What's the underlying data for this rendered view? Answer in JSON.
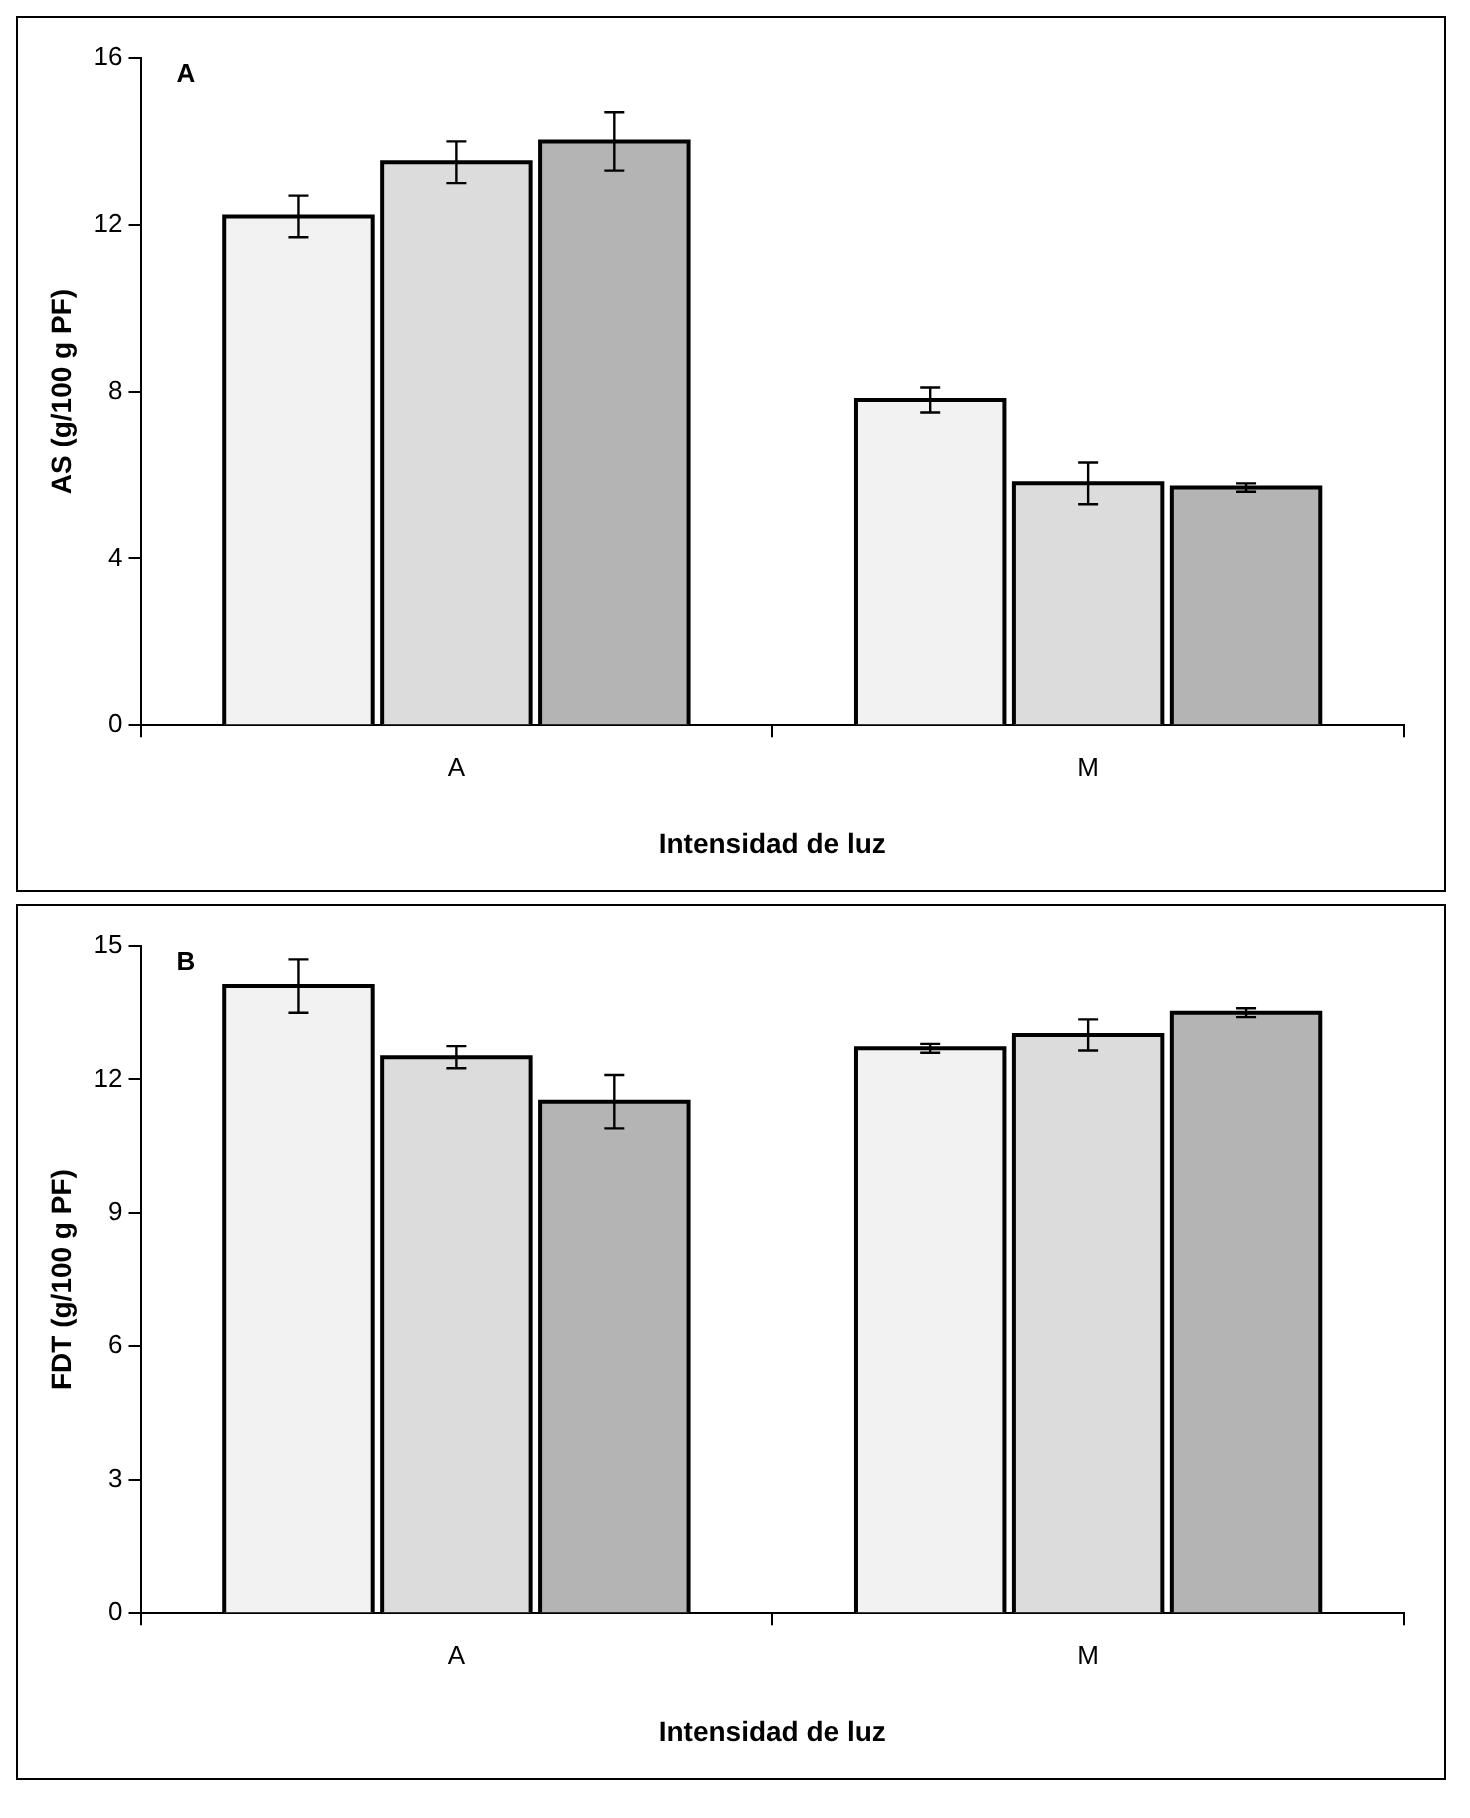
{
  "chart_data": [
    {
      "type": "bar",
      "categories": [
        "A",
        "M"
      ],
      "xlabel": "Intensidad de luz",
      "ylabel": "AS (g/100 g PF)",
      "ylim": [
        0,
        16
      ],
      "yticks": [
        0,
        4,
        8,
        12,
        16
      ],
      "grid": false,
      "legend": false,
      "annotations": [
        "A"
      ],
      "series": [
        {
          "color": "#f2f2f2",
          "values": [
            12.2,
            7.8
          ],
          "errors": [
            0.5,
            0.3
          ]
        },
        {
          "color": "#dcdcdc",
          "values": [
            13.5,
            5.8
          ],
          "errors": [
            0.5,
            0.5
          ]
        },
        {
          "color": "#b4b4b4",
          "values": [
            14.0,
            5.7
          ],
          "errors": [
            0.7,
            0.1
          ]
        }
      ]
    },
    {
      "type": "bar",
      "categories": [
        "A",
        "M"
      ],
      "xlabel": "Intensidad de luz",
      "ylabel": "FDT (g/100 g PF)",
      "ylim": [
        0,
        15
      ],
      "yticks": [
        0,
        3,
        6,
        9,
        12,
        15
      ],
      "grid": false,
      "legend": false,
      "annotations": [
        "B"
      ],
      "series": [
        {
          "color": "#f2f2f2",
          "values": [
            14.1,
            12.7
          ],
          "errors": [
            0.6,
            0.1
          ]
        },
        {
          "color": "#dcdcdc",
          "values": [
            12.5,
            13.0
          ],
          "errors": [
            0.25,
            0.35
          ]
        },
        {
          "color": "#b4b4b4",
          "values": [
            11.5,
            13.5
          ],
          "errors": [
            0.6,
            0.1
          ]
        }
      ]
    }
  ]
}
